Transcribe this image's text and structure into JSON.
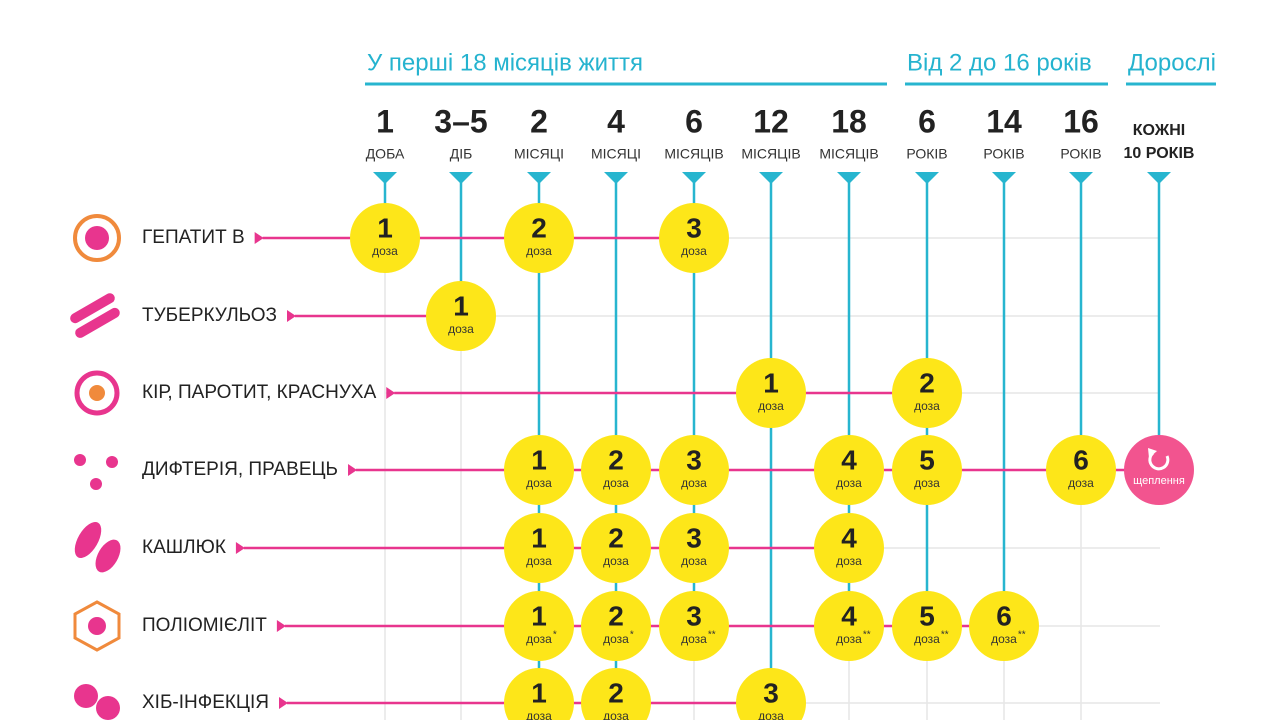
{
  "groups": [
    "У перші 18 місяців життя",
    "Від 2 до 16 років",
    "Дорослі"
  ],
  "columns": [
    {
      "num": "1",
      "unit": "ДОБА"
    },
    {
      "num": "3–5",
      "unit": "ДІБ"
    },
    {
      "num": "2",
      "unit": "МІСЯЦІ"
    },
    {
      "num": "4",
      "unit": "МІСЯЦІ"
    },
    {
      "num": "6",
      "unit": "МІСЯЦІВ"
    },
    {
      "num": "12",
      "unit": "МІСЯЦІВ"
    },
    {
      "num": "18",
      "unit": "МІСЯЦІВ"
    },
    {
      "num": "6",
      "unit": "РОКІВ"
    },
    {
      "num": "14",
      "unit": "РОКІВ"
    },
    {
      "num": "16",
      "unit": "РОКІВ"
    },
    {
      "line1": "КОЖНІ",
      "line2": "10 РОКІВ"
    }
  ],
  "rows": [
    {
      "name": "ГЕПАТИТ В",
      "cells": [
        {
          "num": "1",
          "label": "доза"
        },
        null,
        {
          "num": "2",
          "label": "доза"
        },
        null,
        {
          "num": "3",
          "label": "доза"
        },
        null,
        null,
        null,
        null,
        null,
        null
      ]
    },
    {
      "name": "ТУБЕРКУЛЬОЗ",
      "cells": [
        null,
        {
          "num": "1",
          "label": "доза"
        },
        null,
        null,
        null,
        null,
        null,
        null,
        null,
        null,
        null
      ]
    },
    {
      "name": "КІР, ПАРОТИТ, КРАСНУХА",
      "cells": [
        null,
        null,
        null,
        null,
        null,
        {
          "num": "1",
          "label": "доза"
        },
        null,
        {
          "num": "2",
          "label": "доза"
        },
        null,
        null,
        null
      ]
    },
    {
      "name": "ДИФТЕРІЯ, ПРАВЕЦЬ",
      "cells": [
        null,
        null,
        {
          "num": "1",
          "label": "доза"
        },
        {
          "num": "2",
          "label": "доза"
        },
        {
          "num": "3",
          "label": "доза"
        },
        null,
        {
          "num": "4",
          "label": "доза"
        },
        {
          "num": "5",
          "label": "доза"
        },
        null,
        {
          "num": "6",
          "label": "доза"
        },
        {
          "label": "щеплення"
        }
      ]
    },
    {
      "name": "КАШЛЮК",
      "cells": [
        null,
        null,
        {
          "num": "1",
          "label": "доза"
        },
        {
          "num": "2",
          "label": "доза"
        },
        {
          "num": "3",
          "label": "доза"
        },
        null,
        {
          "num": "4",
          "label": "доза"
        },
        null,
        null,
        null,
        null
      ]
    },
    {
      "name": "ПОЛІОМІЄЛІТ",
      "cells": [
        null,
        null,
        {
          "num": "1",
          "label": "доза",
          "note": "*"
        },
        {
          "num": "2",
          "label": "доза",
          "note": "*"
        },
        {
          "num": "3",
          "label": "доза",
          "note": "**"
        },
        null,
        {
          "num": "4",
          "label": "доза",
          "note": "**"
        },
        {
          "num": "5",
          "label": "доза",
          "note": "**"
        },
        {
          "num": "6",
          "label": "доза",
          "note": "**"
        },
        null,
        null
      ]
    },
    {
      "name": "ХІБ-ІНФЕКЦІЯ",
      "cells": [
        null,
        null,
        {
          "num": "1",
          "label": "доза"
        },
        {
          "num": "2",
          "label": "доза"
        },
        null,
        {
          "num": "3",
          "label": "доза"
        },
        null,
        null,
        null,
        null,
        null
      ]
    }
  ]
}
